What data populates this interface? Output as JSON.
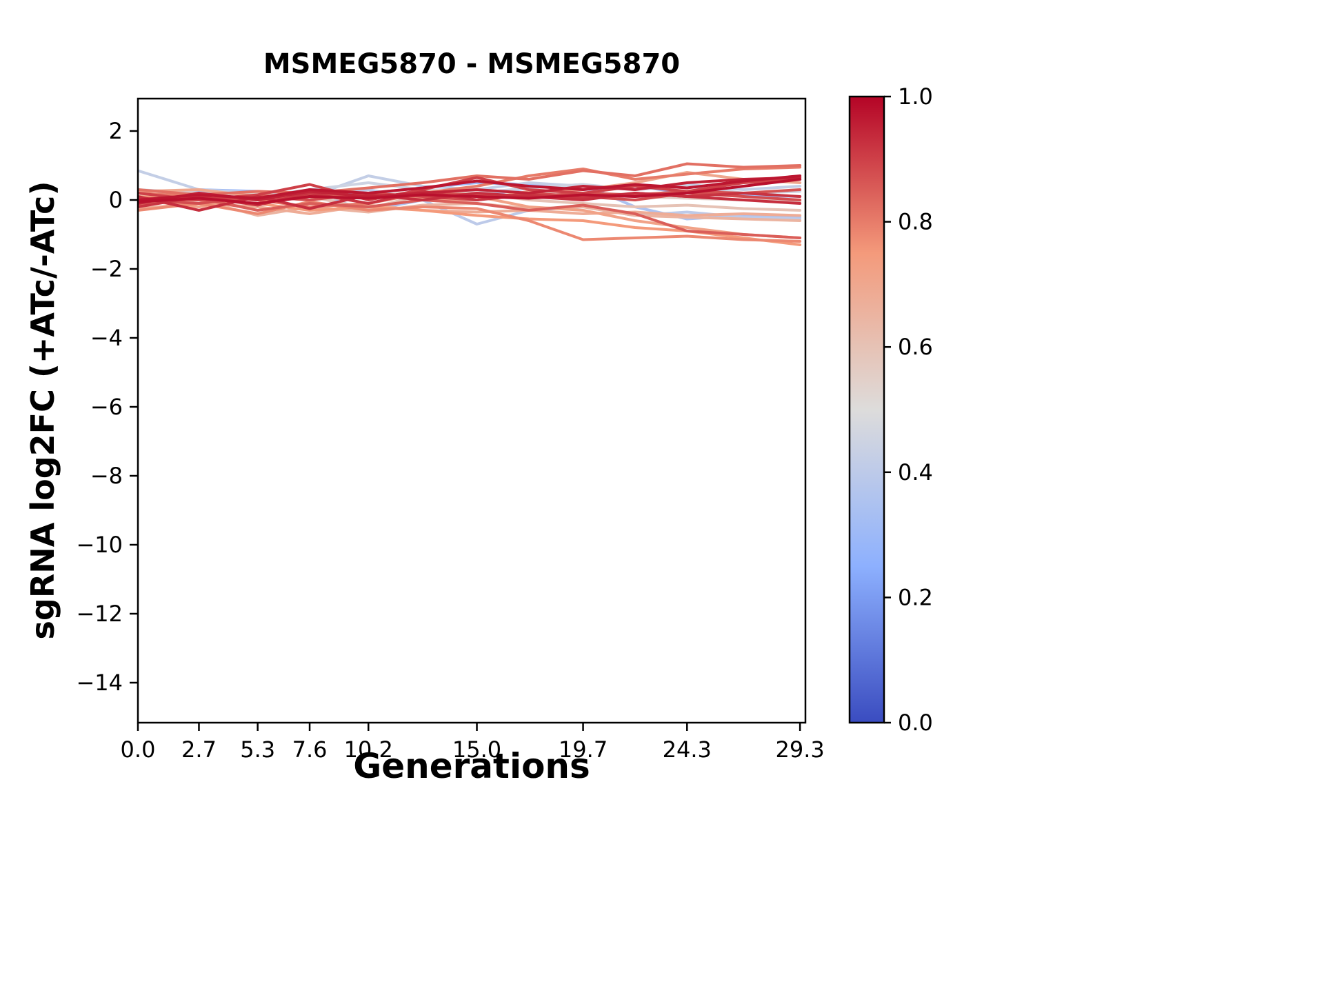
{
  "chart_data": {
    "type": "line",
    "title": "MSMEG5870 - MSMEG5870",
    "xlabel": "Generations",
    "ylabel": "sgRNA log2FC (+ATc/-ATc)",
    "xlim": [
      0,
      29.54
    ],
    "ylim": [
      -15.16,
      2.94
    ],
    "grid": false,
    "xticks": [
      0.0,
      2.7,
      5.3,
      7.6,
      10.2,
      15.0,
      19.7,
      24.3,
      29.3
    ],
    "xtick_labels": [
      "0.0",
      "2.7",
      "5.3",
      "7.6",
      "10.2",
      "15.0",
      "19.7",
      "24.3",
      "29.3"
    ],
    "yticks": [
      2,
      0,
      -2,
      -4,
      -6,
      -8,
      -10,
      -12,
      -14
    ],
    "ytick_labels": [
      "2",
      "0",
      "−2",
      "−4",
      "−6",
      "−8",
      "−10",
      "−12",
      "−14"
    ],
    "x": [
      0,
      2.7,
      5.3,
      7.6,
      10.2,
      12.6,
      15.0,
      17.3,
      19.7,
      22.0,
      24.3,
      26.8,
      29.3
    ],
    "series": [
      {
        "color_value": 0.97,
        "values": [
          0.0,
          0.15,
          0.05,
          0.3,
          0.2,
          0.35,
          0.55,
          0.4,
          0.3,
          0.45,
          0.35,
          0.55,
          0.7
        ]
      },
      {
        "color_value": 0.95,
        "values": [
          -0.1,
          0.2,
          0.0,
          0.25,
          0.1,
          0.2,
          0.3,
          0.2,
          0.4,
          0.3,
          0.5,
          0.6,
          0.65
        ]
      },
      {
        "color_value": 0.93,
        "values": [
          0.1,
          -0.3,
          0.1,
          -0.25,
          0.15,
          0.0,
          0.2,
          0.1,
          0.0,
          0.2,
          0.1,
          0.0,
          -0.1
        ]
      },
      {
        "color_value": 0.92,
        "values": [
          -0.2,
          0.1,
          -0.15,
          0.2,
          -0.1,
          0.25,
          0.0,
          0.15,
          0.05,
          0.2,
          0.1,
          0.2,
          0.1
        ]
      },
      {
        "color_value": 0.9,
        "values": [
          0.2,
          0.0,
          0.15,
          0.45,
          0.0,
          0.3,
          0.65,
          0.3,
          0.2,
          0.4,
          0.25,
          0.5,
          0.6
        ]
      },
      {
        "color_value": 0.88,
        "values": [
          0.0,
          -0.1,
          0.1,
          0.0,
          0.2,
          0.1,
          0.0,
          0.2,
          0.1,
          0.0,
          0.2,
          0.1,
          0.0
        ]
      },
      {
        "color_value": 0.87,
        "values": [
          0.05,
          0.0,
          0.1,
          0.15,
          0.1,
          0.2,
          0.15,
          0.1,
          0.2,
          0.15,
          0.25,
          0.2,
          0.3
        ]
      },
      {
        "color_value": 0.85,
        "values": [
          -0.15,
          0.05,
          -0.3,
          -0.1,
          -0.2,
          0.0,
          -0.1,
          -0.3,
          -0.15,
          -0.4,
          -0.9,
          -1.0,
          -1.1
        ]
      },
      {
        "color_value": 0.82,
        "values": [
          0.3,
          0.15,
          0.25,
          0.2,
          0.35,
          0.5,
          0.7,
          0.6,
          0.85,
          0.7,
          1.05,
          0.95,
          1.0
        ]
      },
      {
        "color_value": 0.8,
        "values": [
          0.2,
          0.1,
          0.0,
          -0.2,
          -0.1,
          0.2,
          0.4,
          0.7,
          0.9,
          0.6,
          0.75,
          0.9,
          0.95
        ]
      },
      {
        "color_value": 0.78,
        "values": [
          -0.3,
          -0.1,
          -0.4,
          -0.05,
          -0.3,
          -0.2,
          -0.25,
          -0.6,
          -1.15,
          -1.1,
          -1.05,
          -1.15,
          -1.2
        ]
      },
      {
        "color_value": 0.75,
        "values": [
          0.1,
          0.0,
          -0.1,
          -0.3,
          -0.2,
          -0.3,
          -0.45,
          -0.55,
          -0.6,
          -0.8,
          -0.9,
          -1.1,
          -1.3
        ]
      },
      {
        "color_value": 0.72,
        "values": [
          0.0,
          -0.2,
          0.1,
          0.0,
          0.2,
          0.0,
          0.1,
          -0.2,
          -0.3,
          -0.6,
          -0.8,
          -1.0,
          -1.1
        ]
      },
      {
        "color_value": 0.7,
        "values": [
          0.25,
          0.3,
          0.1,
          0.2,
          0.1,
          0.05,
          0.0,
          0.25,
          0.3,
          0.5,
          0.8,
          0.6,
          0.5
        ]
      },
      {
        "color_value": 0.68,
        "values": [
          -0.25,
          -0.1,
          -0.2,
          -0.4,
          -0.15,
          -0.3,
          -0.35,
          -0.3,
          -0.4,
          -0.35,
          -0.45,
          -0.4,
          -0.45
        ]
      },
      {
        "color_value": 0.65,
        "values": [
          -0.1,
          0.0,
          -0.45,
          -0.2,
          -0.35,
          -0.15,
          -0.1,
          -0.25,
          -0.2,
          -0.45,
          -0.5,
          -0.55,
          -0.6
        ]
      },
      {
        "color_value": 0.6,
        "values": [
          0.1,
          0.2,
          0.0,
          0.1,
          -0.25,
          0.15,
          0.2,
          0.0,
          -0.1,
          -0.2,
          -0.15,
          -0.25,
          -0.3
        ]
      },
      {
        "color_value": 0.55,
        "values": [
          0.0,
          0.1,
          0.2,
          0.0,
          0.1,
          0.25,
          0.3,
          0.2,
          0.15,
          0.1,
          0.05,
          0.0,
          -0.05
        ]
      },
      {
        "color_value": 0.45,
        "values": [
          0.3,
          0.2,
          0.1,
          0.3,
          0.5,
          0.3,
          0.2,
          0.35,
          0.45,
          0.3,
          0.4,
          0.2,
          0.25
        ]
      },
      {
        "color_value": 0.42,
        "values": [
          0.85,
          0.3,
          0.2,
          0.1,
          0.7,
          0.4,
          0.3,
          0.5,
          0.4,
          0.3,
          0.45,
          0.3,
          0.4
        ]
      },
      {
        "color_value": 0.4,
        "values": [
          0.1,
          0.3,
          0.2,
          0.1,
          0.3,
          0.0,
          -0.7,
          -0.3,
          -0.2,
          -0.45,
          -0.35,
          -0.5,
          -0.55
        ]
      },
      {
        "color_value": 0.35,
        "values": [
          -0.1,
          0.25,
          0.1,
          0.2,
          -0.3,
          0.0,
          0.1,
          0.35,
          0.45,
          -0.2,
          -0.55,
          -0.45,
          -0.5
        ]
      },
      {
        "color_value": 0.3,
        "values": [
          0.0,
          0.3,
          0.25,
          0.1,
          0.2,
          0.35,
          0.5,
          0.45,
          0.3,
          0.4,
          0.2,
          0.15,
          0.1
        ]
      },
      {
        "color_value": 0.98,
        "values": [
          -0.05,
          0.05,
          -0.1,
          0.1,
          0.05,
          0.15,
          0.1,
          0.05,
          0.15,
          0.1,
          0.2,
          0.4,
          0.6
        ]
      }
    ],
    "colorbar": {
      "cmap": "coolwarm",
      "vmin": 0.0,
      "vmax": 1.0,
      "ticks": [
        0.0,
        0.2,
        0.4,
        0.6,
        0.8,
        1.0
      ],
      "tick_labels": [
        "0.0",
        "0.2",
        "0.4",
        "0.6",
        "0.8",
        "1.0"
      ],
      "gradient_stops": [
        [
          0.0,
          "#3a4cc0"
        ],
        [
          0.25,
          "#8db0fe"
        ],
        [
          0.5,
          "#dddcdb"
        ],
        [
          0.75,
          "#f49a7b"
        ],
        [
          1.0,
          "#b40426"
        ]
      ]
    },
    "axis_color": "#000000"
  }
}
